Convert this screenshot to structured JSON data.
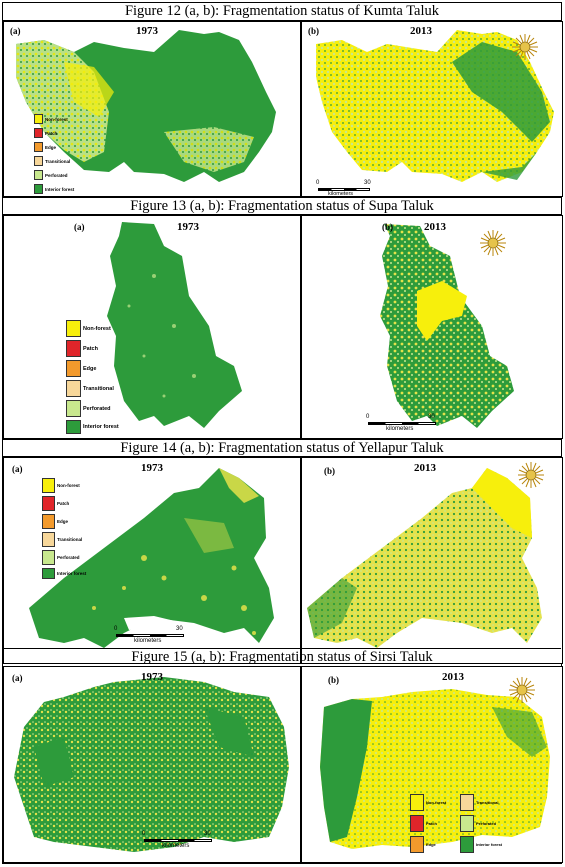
{
  "colors": {
    "non_forest": "#f7ef0c",
    "patch": "#e0252a",
    "edge": "#f39a2c",
    "transitional": "#f7d79a",
    "perforated": "#c8e88e",
    "interior_forest": "#2d9b3b",
    "yellowish": "#e5e24a"
  },
  "figures": [
    {
      "caption": "Figure 12 (a, b): Fragmentation status of Kumta Taluk",
      "a": {
        "label": "(a)",
        "year": "1973",
        "legend": [
          "Non-forest",
          "Patch",
          "Edge",
          "Transitional",
          "Perforated",
          "Interior forest"
        ]
      },
      "b": {
        "label": "(b)",
        "year": "2013",
        "scale": {
          "zero": "0",
          "max": "30",
          "unit": "kilometers"
        }
      }
    },
    {
      "caption": "Figure 13 (a, b): Fragmentation status of Supa Taluk",
      "a": {
        "label": "(a)",
        "year": "1973",
        "legend": [
          "Non-forest",
          "Patch",
          "Edge",
          "Transitional",
          "Perforated",
          "Interior forest"
        ]
      },
      "b": {
        "label": "(b)",
        "year": "2013",
        "scale": {
          "zero": "0",
          "max": "30",
          "unit": "kilometers"
        }
      }
    },
    {
      "caption": "Figure 14 (a, b): Fragmentation status of Yellapur Taluk",
      "a": {
        "label": "(a)",
        "year": "1973",
        "legend": [
          "Non-forest",
          "Patch",
          "Edge",
          "Transitional",
          "Perforated",
          "Interior forest"
        ],
        "scale": {
          "zero": "0",
          "max": "30",
          "unit": "kilometers"
        }
      },
      "b": {
        "label": "(b)",
        "year": "2013"
      }
    },
    {
      "caption": "Figure 15 (a, b): Fragmentation status of Sirsi Taluk",
      "a": {
        "label": "(a)",
        "year": "1973",
        "scale": {
          "zero": "0",
          "max": "30",
          "unit": "kilometers"
        }
      },
      "b": {
        "label": "(b)",
        "year": "2013",
        "legend": [
          "Non-forest",
          "Patch",
          "Edge",
          "Transitional",
          "Perforated",
          "Interior forest"
        ]
      }
    }
  ]
}
